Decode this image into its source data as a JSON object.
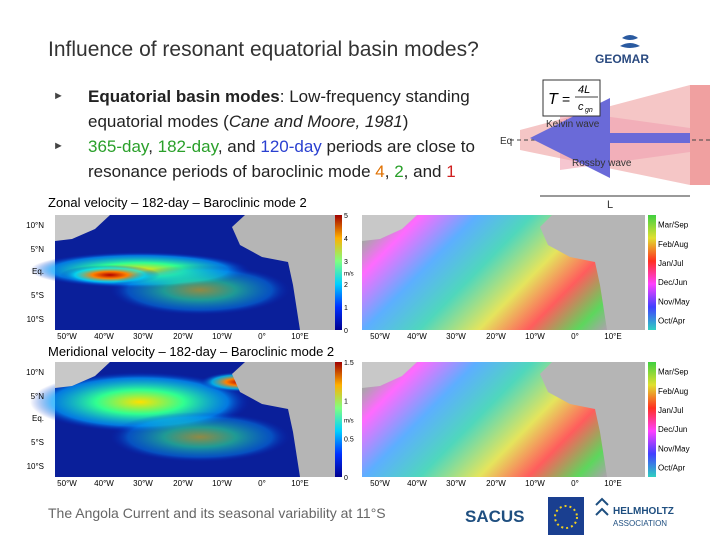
{
  "header": {
    "title": "Influence of resonant equatorial basin modes?",
    "logo": "GEOMAR"
  },
  "bullets": [
    {
      "segments": [
        "Equatorial basin modes",
        ": Low-frequency standing equatorial modes (",
        "Cane and Moore, 1981",
        ")"
      ]
    },
    {
      "segments": [
        "365-day",
        ", ",
        "182-day",
        ", and ",
        "120-day",
        " periods are close to resonance periods of baroclinic mode ",
        "4",
        ", ",
        "2",
        ", and ",
        "1"
      ]
    }
  ],
  "diagram": {
    "formula": {
      "lhs": "T",
      "eq": "=",
      "numerator": "4L",
      "denominator": "c",
      "subscript": "gn"
    },
    "kelvin": "Kelvin wave",
    "rossby": "Rossby wave",
    "eq": "Eq",
    "length": "L"
  },
  "panels": [
    {
      "title": "Zonal velocity – 182-day – Baroclinic mode 2",
      "lat_labels": [
        "10°N",
        "5°N",
        "Eq.",
        "5°S",
        "10°S"
      ],
      "lon_labels": [
        "50°W",
        "40°W",
        "30°W",
        "20°W",
        "10°W",
        "0°",
        "10°E"
      ],
      "colorbar_ticks": [
        "5",
        "4",
        "3",
        "2",
        "1",
        "0"
      ],
      "unit": "m/s",
      "phase_lon_labels": [
        "50°W",
        "40°W",
        "30°W",
        "20°W",
        "10°W",
        "0°",
        "10°E"
      ],
      "phase_labels": [
        "Mar/Sep",
        "Feb/Aug",
        "Jan/Jul",
        "Dec/Jun",
        "Nov/May",
        "Oct/Apr"
      ]
    },
    {
      "title": "Meridional velocity – 182-day – Baroclinic mode 2",
      "lat_labels": [
        "10°N",
        "5°N",
        "Eq.",
        "5°S",
        "10°S"
      ],
      "lon_labels": [
        "50°W",
        "40°W",
        "30°W",
        "20°W",
        "10°W",
        "0°",
        "10°E"
      ],
      "colorbar_ticks": [
        "1.5",
        "1",
        "0.5",
        "0"
      ],
      "unit": "m/s",
      "phase_lon_labels": [
        "50°W",
        "40°W",
        "30°W",
        "20°W",
        "10°W",
        "0°",
        "10°E"
      ],
      "phase_labels": [
        "Mar/Sep",
        "Feb/Aug",
        "Jan/Jul",
        "Dec/Jun",
        "Nov/May",
        "Oct/Apr"
      ]
    }
  ],
  "footer": {
    "text": "The Angola Current and its seasonal variability at 11°S",
    "logos": [
      "SACUS",
      "HELMHOLTZ",
      "ASSOCIATION"
    ]
  }
}
